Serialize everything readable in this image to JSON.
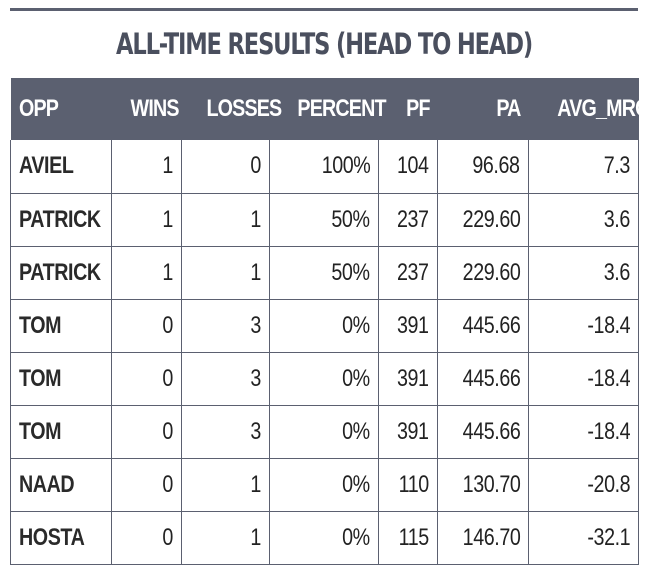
{
  "title": "ALL-TIME RESULTS (HEAD TO HEAD)",
  "colors": {
    "header_bg": "#5b6070",
    "header_text": "#ffffff",
    "title_text": "#4a4f5e",
    "border": "#5b6070"
  },
  "table": {
    "columns": [
      "OPP",
      "WINS",
      "LOSSES",
      "PERCENT",
      "PF",
      "PA",
      "AVG_MRG"
    ],
    "rows": [
      {
        "opp": "AVIEL",
        "wins": "1",
        "losses": "0",
        "percent": "100%",
        "pf": "104",
        "pa": "96.68",
        "avg_mrg": "7.3"
      },
      {
        "opp": "PATRICK",
        "wins": "1",
        "losses": "1",
        "percent": "50%",
        "pf": "237",
        "pa": "229.60",
        "avg_mrg": "3.6"
      },
      {
        "opp": "PATRICK",
        "wins": "1",
        "losses": "1",
        "percent": "50%",
        "pf": "237",
        "pa": "229.60",
        "avg_mrg": "3.6"
      },
      {
        "opp": "TOM",
        "wins": "0",
        "losses": "3",
        "percent": "0%",
        "pf": "391",
        "pa": "445.66",
        "avg_mrg": "-18.4"
      },
      {
        "opp": "TOM",
        "wins": "0",
        "losses": "3",
        "percent": "0%",
        "pf": "391",
        "pa": "445.66",
        "avg_mrg": "-18.4"
      },
      {
        "opp": "TOM",
        "wins": "0",
        "losses": "3",
        "percent": "0%",
        "pf": "391",
        "pa": "445.66",
        "avg_mrg": "-18.4"
      },
      {
        "opp": "NAAD",
        "wins": "0",
        "losses": "1",
        "percent": "0%",
        "pf": "110",
        "pa": "130.70",
        "avg_mrg": "-20.8"
      },
      {
        "opp": "HOSTA",
        "wins": "0",
        "losses": "1",
        "percent": "0%",
        "pf": "115",
        "pa": "146.70",
        "avg_mrg": "-32.1"
      }
    ]
  }
}
